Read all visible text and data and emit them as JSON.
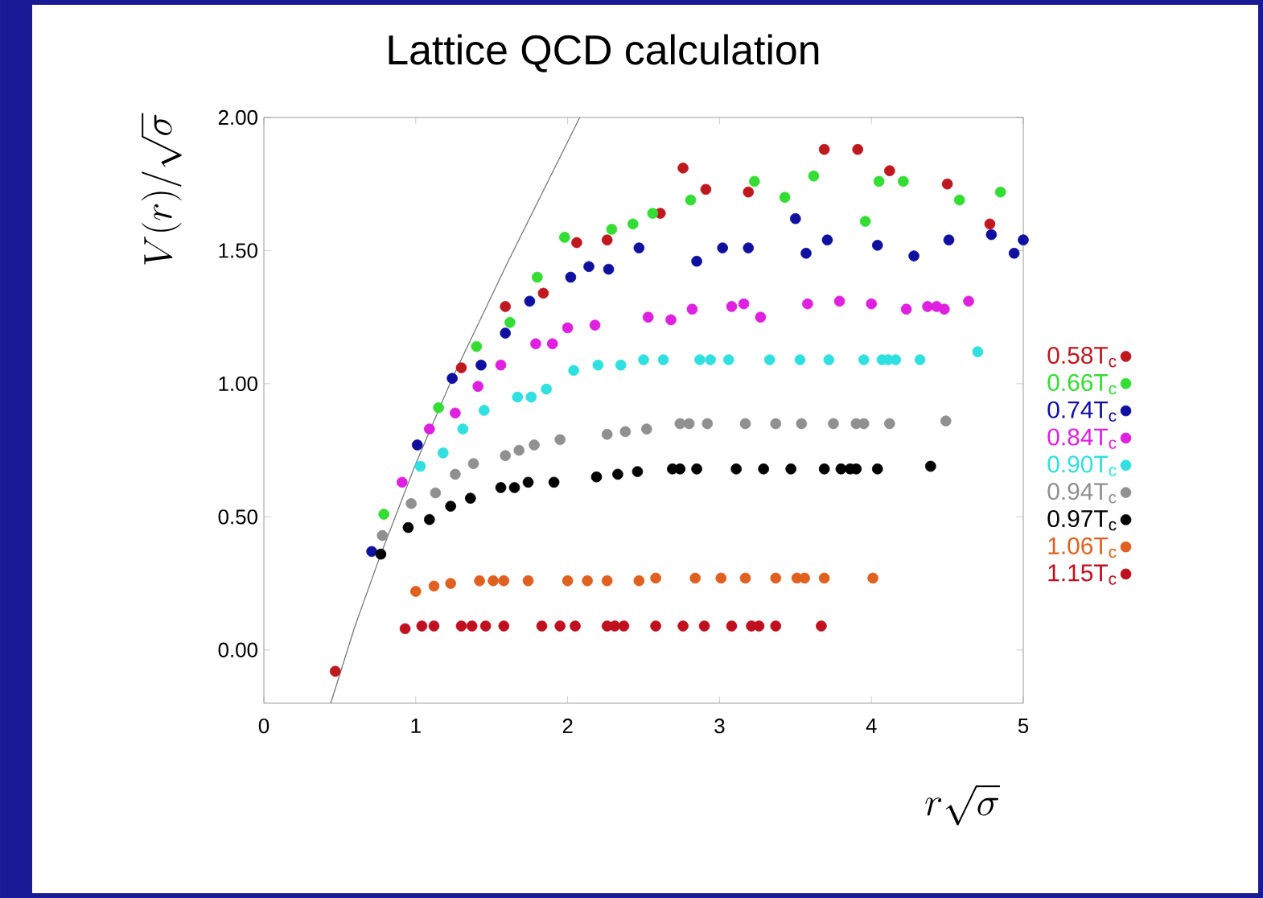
{
  "chart_data": {
    "type": "scatter",
    "title": "Lattice QCD calculation",
    "xlabel": "r\\sqrt{\\sigma}",
    "ylabel": "V(r)/\\sqrt{\\sigma}",
    "xlim": [
      0,
      5
    ],
    "ylim": [
      -0.2,
      2.0
    ],
    "xticks": [
      0,
      1,
      2,
      3,
      4,
      5
    ],
    "yticks": [
      {
        "value": 0,
        "label": "0.00"
      },
      {
        "value": 0.5,
        "label": "0.50"
      },
      {
        "value": 1,
        "label": "1.00"
      },
      {
        "value": 1.5,
        "label": "1.50"
      },
      {
        "value": 2,
        "label": "2.00"
      }
    ],
    "legend": "right",
    "series": [
      {
        "type": "line",
        "marker": "none",
        "color": "#707070",
        "x": [
          0.44,
          0.6,
          0.77,
          1.0,
          1.24,
          1.6,
          2.08
        ],
        "values": [
          -0.2,
          0.09,
          0.36,
          0.7,
          1.02,
          1.45,
          2.0
        ]
      },
      {
        "name": "0.58T$_{c}$",
        "marker": "circle",
        "color": "#c0181f",
        "x": [
          0.47,
          1.3,
          1.59,
          1.84,
          2.06,
          2.26,
          2.61,
          2.76,
          2.91,
          3.19,
          3.69,
          3.91,
          4.12,
          4.5,
          4.78
        ],
        "values": [
          -0.08,
          1.06,
          1.29,
          1.34,
          1.53,
          1.54,
          1.64,
          1.81,
          1.73,
          1.72,
          1.88,
          1.88,
          1.8,
          1.75,
          1.6
        ]
      },
      {
        "name": "0.66T$_{c}$",
        "marker": "circle",
        "color": "#33dd33",
        "x": [
          0.79,
          1.15,
          1.4,
          1.62,
          1.8,
          1.98,
          2.29,
          2.43,
          2.56,
          2.81,
          3.23,
          3.43,
          3.62,
          3.96,
          4.05,
          4.21,
          4.58,
          4.85
        ],
        "values": [
          0.51,
          0.91,
          1.14,
          1.23,
          1.4,
          1.55,
          1.58,
          1.6,
          1.64,
          1.69,
          1.76,
          1.7,
          1.78,
          1.61,
          1.76,
          1.76,
          1.69,
          1.72
        ]
      },
      {
        "name": "0.74T$_{c}$",
        "marker": "circle",
        "color": "#1010a0",
        "x": [
          0.71,
          1.01,
          1.24,
          1.43,
          1.59,
          1.75,
          2.02,
          2.14,
          2.27,
          2.47,
          2.85,
          3.02,
          3.19,
          3.5,
          3.57,
          3.71,
          4.04,
          4.28,
          4.51,
          4.79,
          4.94,
          5.0
        ],
        "values": [
          0.37,
          0.77,
          1.02,
          1.07,
          1.19,
          1.31,
          1.4,
          1.44,
          1.43,
          1.51,
          1.46,
          1.51,
          1.51,
          1.62,
          1.49,
          1.54,
          1.52,
          1.48,
          1.54,
          1.56,
          1.49,
          1.54
        ]
      },
      {
        "name": "0.84T$_{c}$",
        "marker": "circle",
        "color": "#e020e0",
        "x": [
          0.91,
          1.09,
          1.26,
          1.41,
          1.56,
          1.79,
          1.9,
          2.0,
          2.18,
          2.53,
          2.68,
          2.82,
          3.08,
          3.16,
          3.27,
          3.58,
          3.79,
          4.0,
          4.23,
          4.37,
          4.43,
          4.48,
          4.64
        ],
        "values": [
          0.63,
          0.83,
          0.89,
          0.99,
          1.07,
          1.15,
          1.15,
          1.21,
          1.22,
          1.25,
          1.24,
          1.28,
          1.29,
          1.3,
          1.25,
          1.3,
          1.31,
          1.3,
          1.28,
          1.29,
          1.29,
          1.28,
          1.31
        ]
      },
      {
        "name": "0.90T$_{c}$",
        "marker": "circle",
        "color": "#30e0e0",
        "x": [
          1.03,
          1.18,
          1.31,
          1.45,
          1.67,
          1.76,
          1.86,
          2.04,
          2.2,
          2.35,
          2.5,
          2.63,
          2.87,
          2.94,
          3.06,
          3.33,
          3.53,
          3.72,
          3.95,
          4.07,
          4.11,
          4.16,
          4.32,
          4.7
        ],
        "values": [
          0.69,
          0.74,
          0.83,
          0.9,
          0.95,
          0.95,
          0.98,
          1.05,
          1.07,
          1.07,
          1.09,
          1.09,
          1.09,
          1.09,
          1.09,
          1.09,
          1.09,
          1.09,
          1.09,
          1.09,
          1.09,
          1.09,
          1.09,
          1.12
        ]
      },
      {
        "name": "0.94T$_{c}$",
        "marker": "circle",
        "color": "#909090",
        "x": [
          0.78,
          0.97,
          1.13,
          1.26,
          1.38,
          1.59,
          1.68,
          1.78,
          1.95,
          2.26,
          2.38,
          2.52,
          2.74,
          2.8,
          2.92,
          3.17,
          3.37,
          3.54,
          3.75,
          3.9,
          3.95,
          4.12,
          4.49
        ],
        "values": [
          0.43,
          0.55,
          0.59,
          0.66,
          0.7,
          0.73,
          0.75,
          0.77,
          0.79,
          0.81,
          0.82,
          0.83,
          0.85,
          0.85,
          0.85,
          0.85,
          0.85,
          0.85,
          0.85,
          0.85,
          0.85,
          0.85,
          0.86
        ]
      },
      {
        "name": "0.97T$_{c}$",
        "marker": "circle",
        "color": "#000000",
        "x": [
          0.77,
          0.95,
          1.09,
          1.23,
          1.36,
          1.56,
          1.65,
          1.74,
          1.91,
          2.19,
          2.33,
          2.46,
          2.69,
          2.74,
          2.85,
          3.11,
          3.29,
          3.47,
          3.69,
          3.8,
          3.86,
          3.9,
          4.04,
          4.39
        ],
        "values": [
          0.36,
          0.46,
          0.49,
          0.54,
          0.57,
          0.61,
          0.61,
          0.63,
          0.63,
          0.65,
          0.66,
          0.67,
          0.68,
          0.68,
          0.68,
          0.68,
          0.68,
          0.68,
          0.68,
          0.68,
          0.68,
          0.68,
          0.68,
          0.69
        ]
      },
      {
        "name": "1.06T$_{c}$",
        "marker": "circle",
        "color": "#e06020",
        "x": [
          1.0,
          1.12,
          1.23,
          1.42,
          1.51,
          1.58,
          1.74,
          2.0,
          2.13,
          2.26,
          2.47,
          2.58,
          2.84,
          3.01,
          3.17,
          3.37,
          3.51,
          3.56,
          3.69,
          4.01
        ],
        "values": [
          0.22,
          0.24,
          0.25,
          0.26,
          0.26,
          0.26,
          0.26,
          0.26,
          0.26,
          0.26,
          0.26,
          0.27,
          0.27,
          0.27,
          0.27,
          0.27,
          0.27,
          0.27,
          0.27,
          0.27
        ]
      },
      {
        "name": "1.15T$_{c}$",
        "marker": "circle",
        "color": "#c01020",
        "x": [
          0.93,
          1.04,
          1.12,
          1.3,
          1.37,
          1.46,
          1.58,
          1.83,
          1.95,
          2.05,
          2.26,
          2.31,
          2.37,
          2.58,
          2.76,
          2.9,
          3.08,
          3.21,
          3.26,
          3.37,
          3.67
        ],
        "values": [
          0.08,
          0.09,
          0.09,
          0.09,
          0.09,
          0.09,
          0.09,
          0.09,
          0.09,
          0.09,
          0.09,
          0.09,
          0.09,
          0.09,
          0.09,
          0.09,
          0.09,
          0.09,
          0.09,
          0.09,
          0.09
        ]
      }
    ]
  }
}
